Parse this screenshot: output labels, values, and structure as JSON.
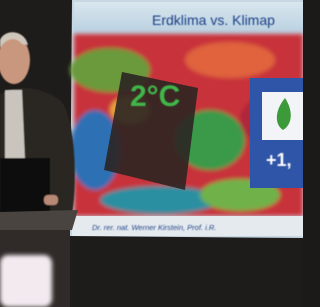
{
  "slide": {
    "title": "Erdklima vs. Klimap",
    "badge": "2°C",
    "value": "+1,",
    "footer": "Dr. rer. nat. Werner Kirstein, Prof. i.R."
  }
}
